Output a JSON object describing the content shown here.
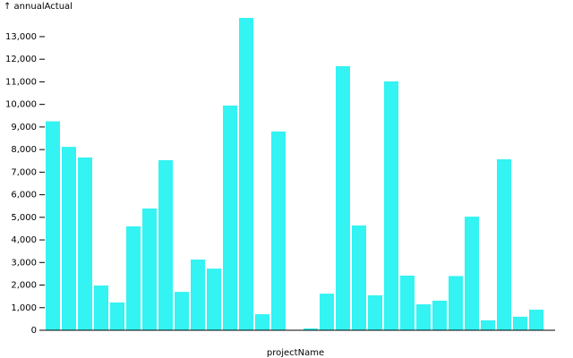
{
  "chart_data": {
    "type": "bar",
    "y_label": "↑ annualActual",
    "x_label": "projectName",
    "categories": [
      null,
      null,
      null,
      null,
      null,
      null,
      null,
      null,
      null,
      null,
      null,
      null,
      null,
      null,
      null,
      null,
      null,
      null,
      null,
      null,
      null,
      null,
      null,
      null,
      null,
      null,
      null,
      null,
      null,
      null,
      null
    ],
    "values": [
      9250,
      8120,
      7650,
      1980,
      1230,
      4600,
      5390,
      7530,
      1700,
      3130,
      2730,
      9950,
      13830,
      710,
      8800,
      0,
      80,
      1620,
      11690,
      4640,
      1550,
      11020,
      2420,
      1150,
      1310,
      2400,
      5030,
      440,
      7570,
      600,
      910
    ],
    "color": "#33f3f3",
    "ylim": [
      0,
      13830
    ],
    "yticks": [
      0,
      {
        "value": 1000,
        "label": "1,000"
      },
      {
        "value": 2000,
        "label": "2,000"
      },
      {
        "value": 3000,
        "label": "3,000"
      },
      {
        "value": 4000,
        "label": "4,000"
      },
      {
        "value": 5000,
        "label": "5,000"
      },
      {
        "value": 6000,
        "label": "6,000"
      },
      {
        "value": 7000,
        "label": "7,000"
      },
      {
        "value": 8000,
        "label": "8,000"
      },
      {
        "value": 9000,
        "label": "9,000"
      },
      {
        "value": 10000,
        "label": "10,000"
      },
      {
        "value": 11000,
        "label": "11,000"
      },
      {
        "value": 12000,
        "label": "12,000"
      },
      {
        "value": 13000,
        "label": "13,000"
      }
    ]
  }
}
